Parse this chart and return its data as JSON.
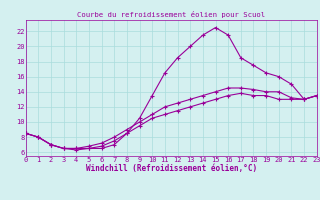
{
  "title": "Courbe du refroidissement éolien pour Scuol",
  "xlabel": "Windchill (Refroidissement éolien,°C)",
  "xlim": [
    0,
    23
  ],
  "ylim": [
    5.5,
    23.5
  ],
  "xticks": [
    0,
    1,
    2,
    3,
    4,
    5,
    6,
    7,
    8,
    9,
    10,
    11,
    12,
    13,
    14,
    15,
    16,
    17,
    18,
    19,
    20,
    21,
    22,
    23
  ],
  "yticks": [
    6,
    8,
    10,
    12,
    14,
    16,
    18,
    20,
    22
  ],
  "bg_color": "#d4f0f0",
  "line_color": "#990099",
  "grid_color": "#aadddd",
  "line1_x": [
    0,
    1,
    2,
    3,
    4,
    5,
    6,
    7,
    8,
    9,
    10,
    11,
    12,
    13,
    14,
    15,
    16,
    17,
    18,
    19,
    20,
    21,
    22,
    23
  ],
  "line1_y": [
    8.5,
    8.0,
    7.0,
    6.5,
    6.5,
    6.5,
    6.5,
    7.0,
    8.5,
    10.5,
    13.5,
    16.5,
    18.5,
    20.0,
    21.5,
    22.5,
    21.5,
    18.5,
    17.5,
    16.5,
    16.0,
    15.0,
    13.0,
    13.5
  ],
  "line2_x": [
    0,
    1,
    2,
    3,
    4,
    5,
    6,
    7,
    8,
    9,
    10,
    11,
    12,
    13,
    14,
    15,
    16,
    17,
    18,
    19,
    20,
    21,
    22,
    23
  ],
  "line2_y": [
    8.5,
    8.0,
    7.0,
    6.5,
    6.5,
    6.8,
    7.2,
    8.0,
    9.0,
    10.0,
    11.0,
    12.0,
    12.5,
    13.0,
    13.5,
    14.0,
    14.5,
    14.5,
    14.3,
    14.0,
    14.0,
    13.2,
    13.0,
    13.5
  ],
  "line3_x": [
    0,
    1,
    2,
    3,
    4,
    5,
    6,
    7,
    8,
    9,
    10,
    11,
    12,
    13,
    14,
    15,
    16,
    17,
    18,
    19,
    20,
    21,
    22,
    23
  ],
  "line3_y": [
    8.5,
    8.0,
    7.0,
    6.5,
    6.3,
    6.5,
    6.8,
    7.5,
    8.5,
    9.5,
    10.5,
    11.0,
    11.5,
    12.0,
    12.5,
    13.0,
    13.5,
    13.8,
    13.5,
    13.5,
    13.0,
    13.0,
    13.0,
    13.5
  ]
}
